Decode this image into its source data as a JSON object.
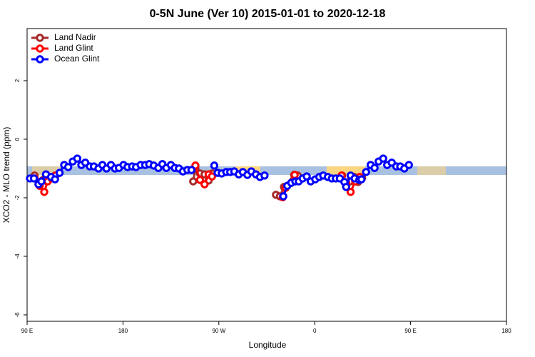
{
  "chart_data": {
    "type": "line",
    "title": "0-5N June (Ver 10)   2015-01-01 to 2020-12-18",
    "x_label": "Longitude",
    "y_label": "XCO2 - MLO trend (ppm)",
    "xlim": [
      90,
      540
    ],
    "ylim": [
      -6.22,
      3.78
    ],
    "xticks": [
      {
        "value": 90,
        "label": "90 E"
      },
      180,
      {
        "value": 270,
        "label": "90 W"
      },
      {
        "value": 360,
        "label": "0"
      },
      {
        "value": 450,
        "label": "90 E"
      },
      {
        "value": 540,
        "label": "180"
      }
    ],
    "yticks": [
      2,
      0,
      -2,
      -4,
      -6
    ],
    "legend": "top-left",
    "series": [
      {
        "name": "Land Nadir",
        "color": "#a52a2a",
        "x": [
          97.0,
          100.7,
          105.0,
          108.7,
          112.5,
          116.2,
          180,
          245.9,
          248.0,
          252.3,
          256.6,
          260.4,
          263.6,
          300,
          323.6,
          327.3,
          331.1,
          340.7,
          344.0,
          360,
          385.7,
          389.5,
          393.2,
          397.0,
          400.7,
          404.5
        ],
        "values": [
          -1.24,
          -1.54,
          -1.39,
          -1.44,
          -1.34,
          -1.24,
          null,
          -1.44,
          -1.0,
          -1.17,
          -1.2,
          -1.41,
          -1.17,
          null,
          -1.9,
          -1.95,
          -1.63,
          -1.22,
          -1.24,
          null,
          -1.24,
          -1.56,
          -1.44,
          -1.29,
          -1.46,
          -1.32
        ]
      },
      {
        "name": "Land Glint",
        "color": "#ff0000",
        "x": [
          97.0,
          101.8,
          106.1,
          109.3,
          113.0,
          116.8,
          180,
          248.0,
          252.3,
          256.6,
          260.4,
          263.6,
          300,
          330.0,
          332.7,
          341.2,
          360,
          385.2,
          389.5,
          393.7,
          398.0,
          402.3
        ],
        "values": [
          -1.34,
          -1.59,
          -1.8,
          -1.44,
          -1.34,
          -1.24,
          null,
          -0.9,
          -1.39,
          -1.54,
          -1.2,
          -1.27,
          null,
          -1.98,
          -1.66,
          -1.22,
          null,
          -1.24,
          -1.49,
          -1.8,
          -1.44,
          -1.29
        ]
      },
      {
        "name": "Ocean Glint",
        "color": "#0000ff",
        "x": [
          92.7,
          96.4,
          100.7,
          103.4,
          107.7,
          112.5,
          116.2,
          120.5,
          124.8,
          128.6,
          132.9,
          137.1,
          140.9,
          144.6,
          148.9,
          152.7,
          157.0,
          160.7,
          164.5,
          168.7,
          172.5,
          176.2,
          180.5,
          184.3,
          188.6,
          192.3,
          196.6,
          200.9,
          204.6,
          208.9,
          213.2,
          217.0,
          220.7,
          225.0,
          228.7,
          232.5,
          236.3,
          240.5,
          244.3,
          255,
          265.7,
          268.9,
          272.7,
          277.0,
          280.7,
          284.5,
          288.7,
          292.5,
          296.8,
          300.5,
          304.8,
          308.6,
          312.9,
          320,
          330.5,
          334.3,
          338.0,
          341.8,
          345.0,
          348.7,
          352.5,
          356.2,
          360.5,
          364.3,
          368.0,
          372.3,
          376.1,
          379.8,
          383.6,
          387.9,
          389.5,
          393.7,
          397.5,
          401.8,
          403.9,
          408.2,
          412.5,
          416.2,
          420.0,
          424.3,
          428.0,
          432.3,
          436.6,
          440.3,
          444.1,
          448.4
        ],
        "values": [
          -1.34,
          -1.34,
          -1.54,
          -1.44,
          -1.2,
          -1.29,
          -1.37,
          -1.15,
          -0.88,
          -0.95,
          -0.76,
          -0.66,
          -0.88,
          -0.8,
          -0.93,
          -0.93,
          -1.0,
          -0.88,
          -1.0,
          -0.88,
          -1.0,
          -0.98,
          -0.88,
          -0.95,
          -0.93,
          -0.95,
          -0.88,
          -0.88,
          -0.85,
          -0.9,
          -0.98,
          -0.85,
          -0.98,
          -0.88,
          -0.98,
          -1.0,
          -1.1,
          -1.05,
          -1.05,
          null,
          -0.9,
          -1.15,
          -1.17,
          -1.12,
          -1.12,
          -1.1,
          -1.2,
          -1.12,
          -1.22,
          -1.1,
          -1.2,
          -1.29,
          -1.24,
          null,
          -1.95,
          -1.59,
          -1.49,
          -1.44,
          -1.44,
          -1.34,
          -1.27,
          -1.44,
          -1.37,
          -1.29,
          -1.24,
          -1.29,
          -1.34,
          -1.34,
          -1.34,
          -1.46,
          -1.63,
          -1.24,
          -1.34,
          -1.39,
          -1.37,
          -1.12,
          -0.88,
          -0.98,
          -0.76,
          -0.66,
          -0.88,
          -0.8,
          -0.93,
          -0.93,
          -1.0,
          -0.88
        ]
      }
    ]
  }
}
